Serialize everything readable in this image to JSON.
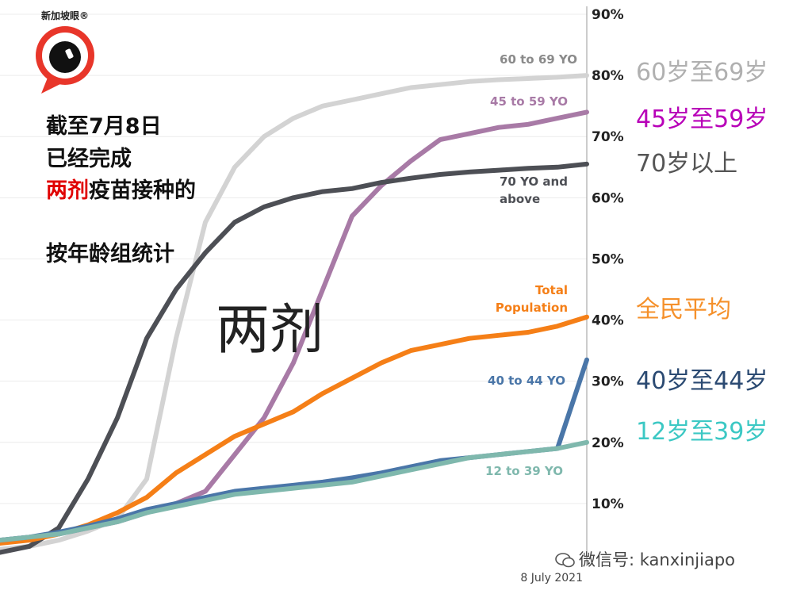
{
  "logo": {
    "text": "新加坡眼®"
  },
  "notes": {
    "line1": "截至7月8日",
    "line2": "已经完成",
    "line3_red": "两剂",
    "line3_rest": "疫苗接种的",
    "line4": "按年龄组统计"
  },
  "big_label": "两剂",
  "zh_legend": [
    {
      "text": "60岁至69岁",
      "color": "#b0b0b0"
    },
    {
      "text": "45岁至59岁",
      "color": "#b800b8"
    },
    {
      "text": "70岁以上",
      "color": "#555555"
    },
    {
      "text": "全民平均",
      "color": "#f5902a"
    },
    {
      "text": "40岁至44岁",
      "color": "#2b4a72"
    },
    {
      "text": "12岁至39岁",
      "color": "#3cc8c4"
    }
  ],
  "watermark": "微信号: kanxinjiapo",
  "chart_data": {
    "type": "line",
    "xlabel": "8 July 2021",
    "ylim": [
      0,
      90
    ],
    "yticks": [
      "10%",
      "20%",
      "30%",
      "40%",
      "50%",
      "60%",
      "70%",
      "80%",
      "90%"
    ],
    "x": [
      0,
      5,
      10,
      15,
      20,
      25,
      30,
      35,
      40,
      45,
      50,
      55,
      60,
      65,
      70,
      75,
      80,
      85,
      90,
      95,
      100
    ],
    "series": [
      {
        "name": "60 to 69 YO",
        "color": "#d3d3d3",
        "values": [
          2.5,
          3,
          4,
          5.5,
          7.5,
          14,
          37,
          56,
          65,
          70,
          73,
          75,
          76,
          77,
          78,
          78.5,
          79,
          79.3,
          79.5,
          79.7,
          80
        ]
      },
      {
        "name": "45 to 59 YO",
        "color": "#a87aa6",
        "values": [
          4,
          4.5,
          5,
          6,
          7,
          8.5,
          10,
          12,
          18,
          24,
          33,
          45,
          57,
          62,
          66,
          69.5,
          70.5,
          71.5,
          72,
          73,
          74
        ]
      },
      {
        "name": "70 YO and above",
        "color": "#4d4f55",
        "values": [
          2,
          3,
          6,
          14,
          24,
          37,
          45,
          51,
          56,
          58.5,
          60,
          61,
          61.5,
          62.5,
          63.2,
          63.8,
          64.2,
          64.5,
          64.8,
          65,
          65.5
        ]
      },
      {
        "name": "Total Population",
        "color": "#f57f17",
        "values": [
          3.5,
          4,
          5,
          6.5,
          8.5,
          11,
          15,
          18,
          21,
          23,
          25,
          28,
          30.5,
          33,
          35,
          36,
          37,
          37.5,
          38,
          39,
          40.5
        ]
      },
      {
        "name": "40 to 44 YO",
        "color": "#4a76a8",
        "values": [
          4,
          4.5,
          5.3,
          6.3,
          7.5,
          9,
          10,
          11,
          12,
          12.5,
          13,
          13.5,
          14.2,
          15,
          16,
          17,
          17.5,
          18,
          18.5,
          19,
          33.5
        ]
      },
      {
        "name": "12 to 39 YO",
        "color": "#7fb8ad",
        "values": [
          4,
          4.5,
          5,
          6,
          7,
          8.5,
          9.5,
          10.5,
          11.5,
          12,
          12.5,
          13,
          13.5,
          14.5,
          15.5,
          16.5,
          17.5,
          18,
          18.5,
          19,
          20
        ]
      }
    ],
    "series_labels": [
      "60 to 69 YO",
      "45 to 59 YO",
      "70 YO and above",
      "Total Population",
      "40 to 44 YO",
      "12 to 39 YO"
    ]
  }
}
